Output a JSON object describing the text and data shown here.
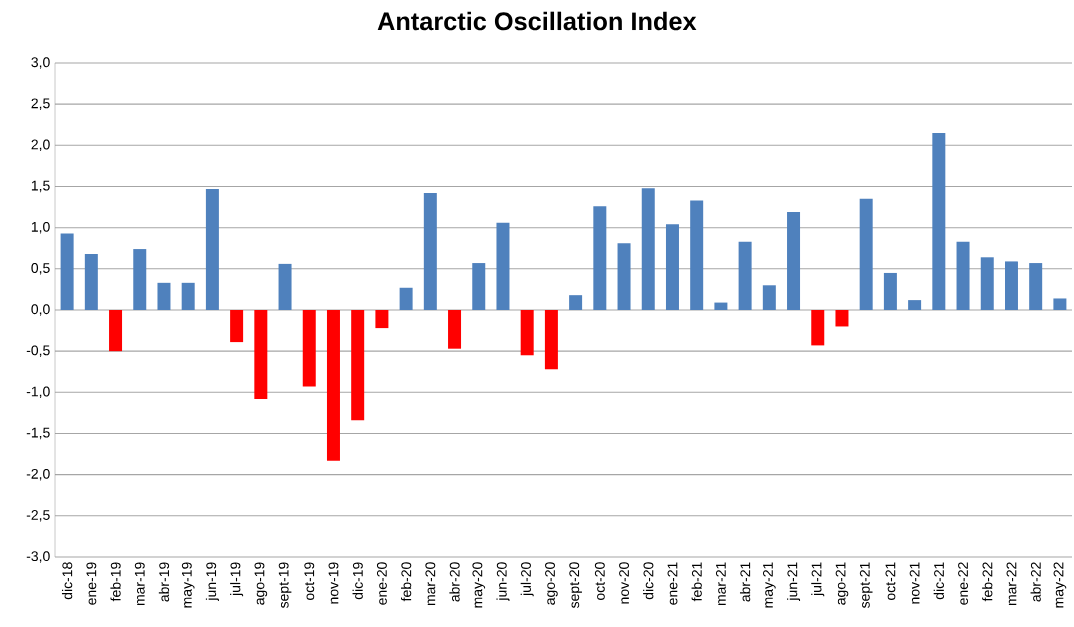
{
  "chart_data": {
    "type": "bar",
    "title": "**Antarctic Oscillation Index**",
    "categories": [
      "dic-18",
      "ene-19",
      "feb-19",
      "mar-19",
      "abr-19",
      "may-19",
      "jun-19",
      "jul-19",
      "ago-19",
      "sept-19",
      "oct-19",
      "nov-19",
      "dic-19",
      "ene-20",
      "feb-20",
      "mar-20",
      "abr-20",
      "may-20",
      "jun-20",
      "jul-20",
      "ago-20",
      "sept-20",
      "oct-20",
      "nov-20",
      "dic-20",
      "ene-21",
      "feb-21",
      "mar-21",
      "abr-21",
      "may-21",
      "jun-21",
      "jul-21",
      "ago-21",
      "sept-21",
      "oct-21",
      "nov-21",
      "dic-21",
      "ene-22",
      "feb-22",
      "mar-22",
      "abr-22",
      "may-22"
    ],
    "values": [
      0.93,
      0.68,
      -0.5,
      0.74,
      0.33,
      0.33,
      1.47,
      -0.39,
      -1.08,
      0.56,
      -0.93,
      -1.83,
      -1.34,
      -0.22,
      0.27,
      1.42,
      -0.47,
      0.57,
      1.06,
      -0.55,
      -0.72,
      0.18,
      1.26,
      0.81,
      1.48,
      1.04,
      1.33,
      0.09,
      0.83,
      0.3,
      1.19,
      -0.43,
      -0.2,
      1.35,
      0.45,
      0.12,
      2.15,
      0.83,
      0.64,
      0.59,
      0.57,
      0.14
    ],
    "colors": [
      "#4f81bd",
      "#4f81bd",
      "#ff0000",
      "#4f81bd",
      "#4f81bd",
      "#4f81bd",
      "#4f81bd",
      "#ff0000",
      "#ff0000",
      "#4f81bd",
      "#ff0000",
      "#ff0000",
      "#ff0000",
      "#ff0000",
      "#4f81bd",
      "#4f81bd",
      "#ff0000",
      "#4f81bd",
      "#4f81bd",
      "#ff0000",
      "#ff0000",
      "#4f81bd",
      "#4f81bd",
      "#4f81bd",
      "#4f81bd",
      "#4f81bd",
      "#4f81bd",
      "#4f81bd",
      "#4f81bd",
      "#4f81bd",
      "#4f81bd",
      "#ff0000",
      "#ff0000",
      "#4f81bd",
      "#4f81bd",
      "#4f81bd",
      "#4f81bd",
      "#4f81bd",
      "#4f81bd",
      "#4f81bd",
      "#4f81bd",
      "#4f81bd"
    ],
    "ylim": [
      -3,
      3
    ],
    "yticks": [
      {
        "value": -3,
        "label": "-3,0"
      },
      {
        "value": -2.5,
        "label": "-2,5"
      },
      {
        "value": -2,
        "label": "-2,0"
      },
      {
        "value": -1.5,
        "label": "-1,5"
      },
      {
        "value": -1,
        "label": "-1,0"
      },
      {
        "value": -0.5,
        "label": "-0,5"
      },
      {
        "value": 0,
        "label": "0,0"
      },
      {
        "value": 0.5,
        "label": "0,5"
      },
      {
        "value": 1,
        "label": "1,0"
      },
      {
        "value": 1.5,
        "label": "1,5"
      },
      {
        "value": 2,
        "label": "2,0"
      },
      {
        "value": 2.5,
        "label": "2,5"
      },
      {
        "value": 3,
        "label": "3,0"
      }
    ],
    "grid": "y"
  }
}
